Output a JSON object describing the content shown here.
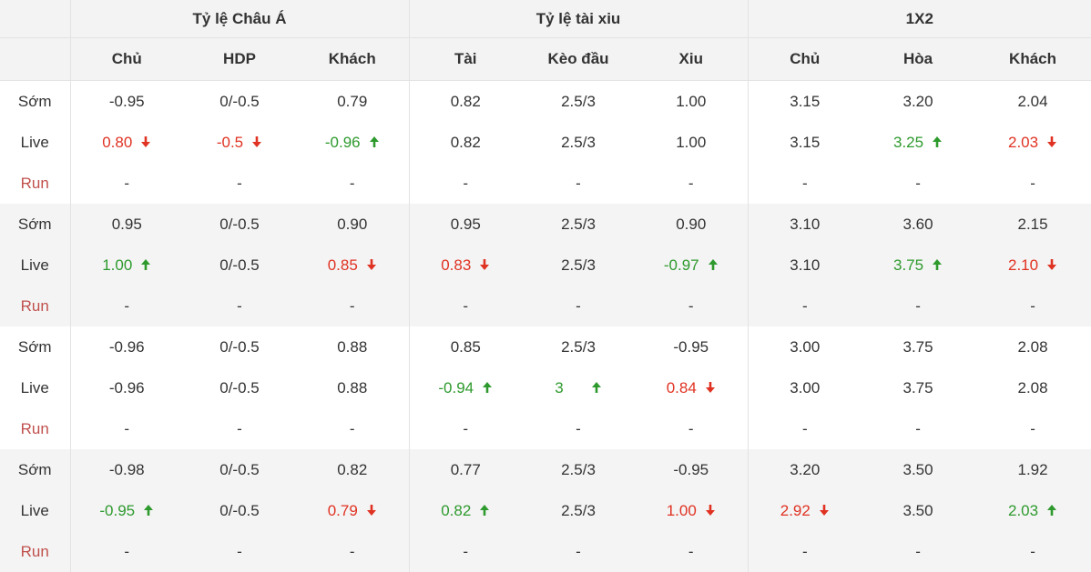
{
  "groups": {
    "asian": "Tỷ lệ Châu Á",
    "ou": "Tỷ lệ tài xiu",
    "x12": "1X2"
  },
  "headers": {
    "asian_home": "Chủ",
    "asian_hdp": "HDP",
    "asian_away": "Khách",
    "ou_over": "Tài",
    "ou_line": "Kèo đầu",
    "ou_under": "Xiu",
    "x12_home": "Chủ",
    "x12_draw": "Hòa",
    "x12_away": "Khách"
  },
  "row_labels": {
    "early": "Sớm",
    "live": "Live",
    "run": "Run"
  },
  "colors": {
    "up": "#2e9a2e",
    "down": "#e03222",
    "run_label": "#c0504d"
  },
  "periods": [
    {
      "early": [
        {
          "v": "-0.95"
        },
        {
          "v": "0/-0.5"
        },
        {
          "v": "0.79"
        },
        {
          "v": "0.82"
        },
        {
          "v": "2.5/3"
        },
        {
          "v": "1.00"
        },
        {
          "v": "3.15"
        },
        {
          "v": "3.20"
        },
        {
          "v": "2.04"
        }
      ],
      "live": [
        {
          "v": "0.80",
          "trend": "down"
        },
        {
          "v": "-0.5",
          "trend": "down"
        },
        {
          "v": "-0.96",
          "trend": "up"
        },
        {
          "v": "0.82"
        },
        {
          "v": "2.5/3"
        },
        {
          "v": "1.00"
        },
        {
          "v": "3.15"
        },
        {
          "v": "3.25",
          "trend": "up"
        },
        {
          "v": "2.03",
          "trend": "down"
        }
      ],
      "run": [
        "-",
        "-",
        "-",
        "-",
        "-",
        "-",
        "-",
        "-",
        "-"
      ]
    },
    {
      "early": [
        {
          "v": "0.95"
        },
        {
          "v": "0/-0.5"
        },
        {
          "v": "0.90"
        },
        {
          "v": "0.95"
        },
        {
          "v": "2.5/3"
        },
        {
          "v": "0.90"
        },
        {
          "v": "3.10"
        },
        {
          "v": "3.60"
        },
        {
          "v": "2.15"
        }
      ],
      "live": [
        {
          "v": "1.00",
          "trend": "up"
        },
        {
          "v": "0/-0.5"
        },
        {
          "v": "0.85",
          "trend": "down"
        },
        {
          "v": "0.83",
          "trend": "down"
        },
        {
          "v": "2.5/3"
        },
        {
          "v": "-0.97",
          "trend": "up"
        },
        {
          "v": "3.10"
        },
        {
          "v": "3.75",
          "trend": "up"
        },
        {
          "v": "2.10",
          "trend": "down"
        }
      ],
      "run": [
        "-",
        "-",
        "-",
        "-",
        "-",
        "-",
        "-",
        "-",
        "-"
      ]
    },
    {
      "early": [
        {
          "v": "-0.96"
        },
        {
          "v": "0/-0.5"
        },
        {
          "v": "0.88"
        },
        {
          "v": "0.85"
        },
        {
          "v": "2.5/3"
        },
        {
          "v": "-0.95"
        },
        {
          "v": "3.00"
        },
        {
          "v": "3.75"
        },
        {
          "v": "2.08"
        }
      ],
      "live": [
        {
          "v": "-0.96"
        },
        {
          "v": "0/-0.5"
        },
        {
          "v": "0.88"
        },
        {
          "v": "-0.94",
          "trend": "up"
        },
        {
          "v": "3",
          "trend": "up",
          "wide": true
        },
        {
          "v": "0.84",
          "trend": "down"
        },
        {
          "v": "3.00"
        },
        {
          "v": "3.75"
        },
        {
          "v": "2.08"
        }
      ],
      "run": [
        "-",
        "-",
        "-",
        "-",
        "-",
        "-",
        "-",
        "-",
        "-"
      ]
    },
    {
      "early": [
        {
          "v": "-0.98"
        },
        {
          "v": "0/-0.5"
        },
        {
          "v": "0.82"
        },
        {
          "v": "0.77"
        },
        {
          "v": "2.5/3"
        },
        {
          "v": "-0.95"
        },
        {
          "v": "3.20"
        },
        {
          "v": "3.50"
        },
        {
          "v": "1.92"
        }
      ],
      "live": [
        {
          "v": "-0.95",
          "trend": "up"
        },
        {
          "v": "0/-0.5"
        },
        {
          "v": "0.79",
          "trend": "down"
        },
        {
          "v": "0.82",
          "trend": "up"
        },
        {
          "v": "2.5/3"
        },
        {
          "v": "1.00",
          "trend": "down"
        },
        {
          "v": "2.92",
          "trend": "down"
        },
        {
          "v": "3.50"
        },
        {
          "v": "2.03",
          "trend": "up"
        }
      ],
      "run": [
        "-",
        "-",
        "-",
        "-",
        "-",
        "-",
        "-",
        "-",
        "-"
      ]
    }
  ]
}
